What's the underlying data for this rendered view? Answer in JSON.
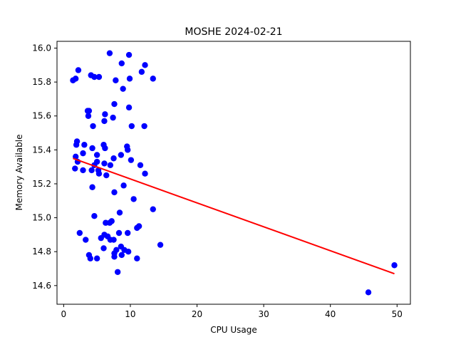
{
  "chart_data": {
    "type": "scatter",
    "title": "MOSHE 2024-02-21",
    "xlabel": "CPU Usage",
    "ylabel": "Memory Available",
    "xlim": [
      -1.0,
      52.0
    ],
    "ylim": [
      14.49,
      16.04
    ],
    "xticks": [
      0,
      10,
      20,
      30,
      40,
      50
    ],
    "yticks": [
      14.6,
      14.8,
      15.0,
      15.2,
      15.4,
      15.6,
      15.8,
      16.0
    ],
    "ytick_labels": [
      "14.6",
      "14.8",
      "15.0",
      "15.2",
      "15.4",
      "15.6",
      "15.8",
      "16.0"
    ],
    "grid": false,
    "point_color": "#0000ff",
    "line_color": "#ff0000",
    "series": [
      {
        "marker": "circle",
        "points": [
          [
            6.9,
            15.97
          ],
          [
            9.8,
            15.96
          ],
          [
            12.2,
            15.9
          ],
          [
            8.7,
            15.91
          ],
          [
            2.2,
            15.87
          ],
          [
            11.7,
            15.86
          ],
          [
            4.1,
            15.84
          ],
          [
            4.6,
            15.83
          ],
          [
            5.3,
            15.83
          ],
          [
            13.4,
            15.82
          ],
          [
            9.9,
            15.82
          ],
          [
            1.4,
            15.81
          ],
          [
            1.8,
            15.82
          ],
          [
            7.8,
            15.81
          ],
          [
            8.9,
            15.76
          ],
          [
            7.6,
            15.67
          ],
          [
            9.8,
            15.65
          ],
          [
            3.8,
            15.63
          ],
          [
            3.6,
            15.63
          ],
          [
            6.2,
            15.61
          ],
          [
            3.7,
            15.6
          ],
          [
            7.4,
            15.59
          ],
          [
            6.1,
            15.57
          ],
          [
            4.4,
            15.54
          ],
          [
            10.2,
            15.54
          ],
          [
            12.1,
            15.54
          ],
          [
            2.0,
            15.45
          ],
          [
            1.9,
            15.43
          ],
          [
            3.1,
            15.43
          ],
          [
            6.0,
            15.43
          ],
          [
            9.5,
            15.42
          ],
          [
            6.2,
            15.41
          ],
          [
            4.3,
            15.41
          ],
          [
            9.6,
            15.4
          ],
          [
            2.9,
            15.38
          ],
          [
            8.6,
            15.37
          ],
          [
            5.0,
            15.37
          ],
          [
            1.8,
            15.36
          ],
          [
            7.5,
            15.35
          ],
          [
            10.1,
            15.34
          ],
          [
            2.1,
            15.33
          ],
          [
            5.0,
            15.33
          ],
          [
            6.1,
            15.32
          ],
          [
            4.6,
            15.31
          ],
          [
            7.0,
            15.31
          ],
          [
            11.5,
            15.31
          ],
          [
            1.7,
            15.29
          ],
          [
            2.9,
            15.28
          ],
          [
            4.2,
            15.28
          ],
          [
            5.2,
            15.28
          ],
          [
            5.3,
            15.26
          ],
          [
            12.2,
            15.26
          ],
          [
            6.4,
            15.25
          ],
          [
            9.0,
            15.19
          ],
          [
            4.3,
            15.18
          ],
          [
            7.6,
            15.15
          ],
          [
            10.5,
            15.11
          ],
          [
            13.4,
            15.05
          ],
          [
            8.4,
            15.03
          ],
          [
            4.6,
            15.01
          ],
          [
            7.2,
            14.98
          ],
          [
            6.3,
            14.97
          ],
          [
            6.9,
            14.97
          ],
          [
            11.3,
            14.95
          ],
          [
            11.0,
            14.94
          ],
          [
            2.4,
            14.91
          ],
          [
            8.3,
            14.91
          ],
          [
            9.6,
            14.91
          ],
          [
            6.1,
            14.9
          ],
          [
            6.6,
            14.89
          ],
          [
            5.6,
            14.88
          ],
          [
            3.3,
            14.87
          ],
          [
            7.0,
            14.87
          ],
          [
            7.5,
            14.87
          ],
          [
            14.5,
            14.84
          ],
          [
            8.6,
            14.83
          ],
          [
            6.0,
            14.82
          ],
          [
            9.1,
            14.81
          ],
          [
            7.9,
            14.81
          ],
          [
            9.7,
            14.8
          ],
          [
            7.6,
            14.79
          ],
          [
            8.7,
            14.78
          ],
          [
            3.8,
            14.78
          ],
          [
            7.6,
            14.77
          ],
          [
            4.0,
            14.76
          ],
          [
            5.0,
            14.76
          ],
          [
            11.0,
            14.76
          ],
          [
            8.1,
            14.68
          ],
          [
            49.6,
            14.72
          ],
          [
            45.7,
            14.56
          ]
        ]
      }
    ],
    "trend_line": {
      "x": [
        1.4,
        49.6
      ],
      "y": [
        15.35,
        14.67
      ]
    }
  }
}
